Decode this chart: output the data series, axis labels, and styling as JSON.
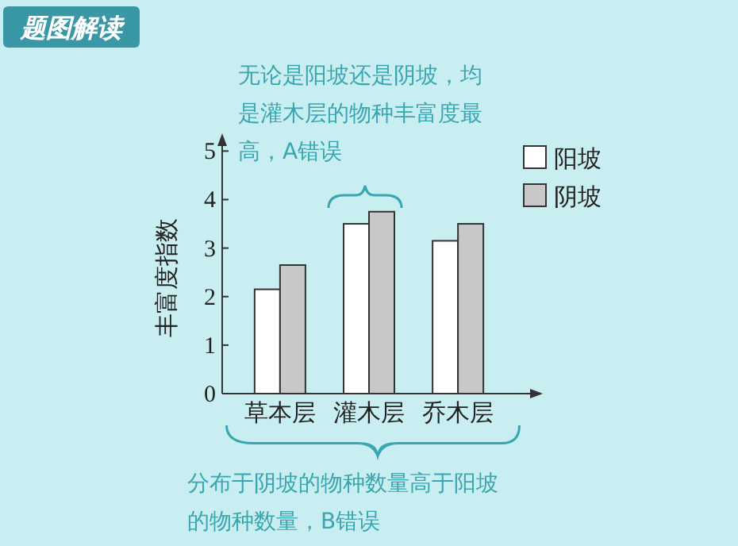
{
  "chart_data": {
    "type": "bar",
    "title": "题图解读",
    "ylabel": "丰富度指数",
    "categories": [
      "草本层",
      "灌木层",
      "乔木层"
    ],
    "series": [
      {
        "name": "阳坡",
        "color": "#ffffff",
        "values": [
          2.15,
          3.5,
          3.15
        ]
      },
      {
        "name": "阴坡",
        "color": "#c8c8c8",
        "values": [
          2.65,
          3.75,
          3.5
        ]
      }
    ],
    "ylim": [
      0,
      5.3
    ],
    "yticks": [
      0,
      1,
      2,
      3,
      4,
      5
    ],
    "legend": "top right",
    "annotations": [
      "无论是阳坡还是阴坡，均是灌木层的物种丰富度最高，A错误",
      "分布于阴坡的物种数量高于阳坡的物种数量，B错误"
    ]
  }
}
